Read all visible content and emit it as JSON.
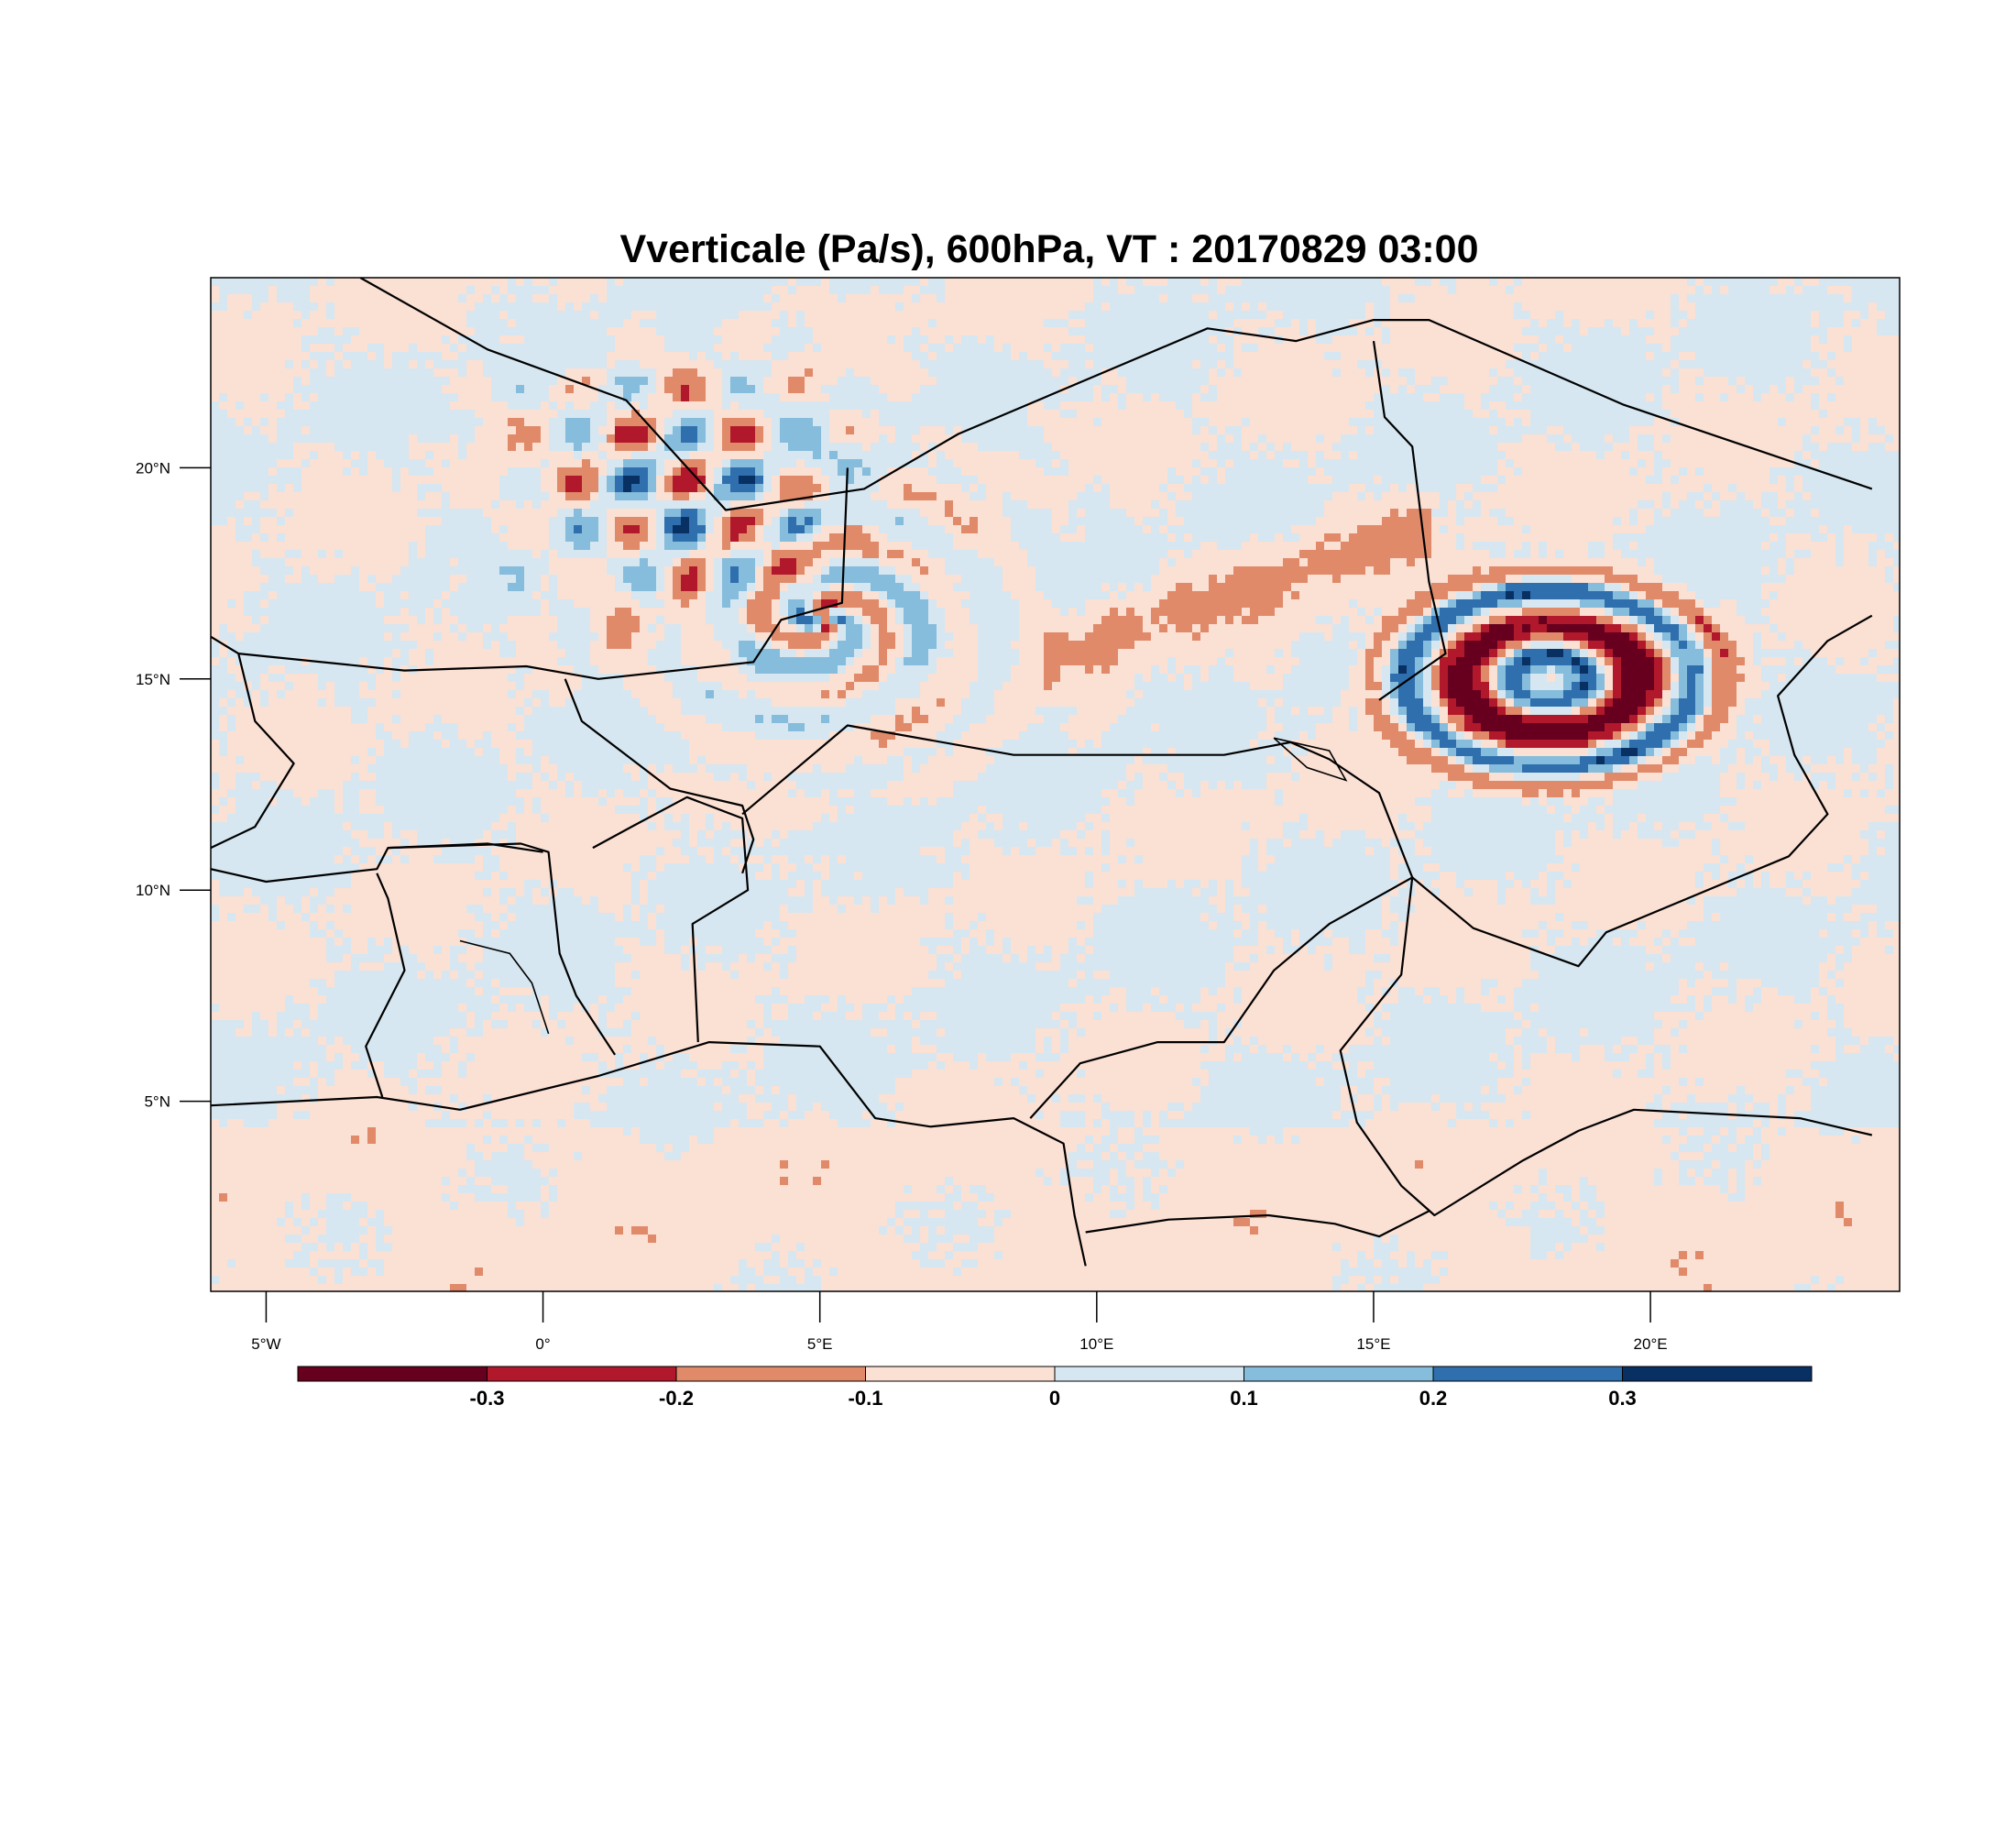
{
  "title": "Vverticale (Pa/s), 600hPa, VT : 20170829  03:00",
  "map": {
    "lon_range": [
      -6,
      24.5
    ],
    "lat_range": [
      0.5,
      24.5
    ],
    "lon_ticks": [
      {
        "value": -5,
        "label": "5°W"
      },
      {
        "value": 0,
        "label": "0°"
      },
      {
        "value": 5,
        "label": "5°E"
      },
      {
        "value": 10,
        "label": "10°E"
      },
      {
        "value": 15,
        "label": "15°E"
      },
      {
        "value": 20,
        "label": "20°E"
      }
    ],
    "lat_ticks": [
      {
        "value": 20,
        "label": "20°N"
      },
      {
        "value": 15,
        "label": "15°N"
      },
      {
        "value": 10,
        "label": "10°N"
      },
      {
        "value": 5,
        "label": "5°N"
      }
    ]
  },
  "colorbar": {
    "colors": [
      "#67001f",
      "#b2182b",
      "#e08a6a",
      "#fbe0d4",
      "#d6e7f1",
      "#86bcdc",
      "#2f6fad",
      "#083063"
    ],
    "labels": [
      "-0.3",
      "-0.2",
      "-0.1",
      "0",
      "0.1",
      "0.2",
      "0.3"
    ]
  },
  "field_features": [
    {
      "type": "anticyclone-ring",
      "lon": 18.1,
      "lat": 15.1,
      "note_color": "#67001f"
    },
    {
      "type": "swirl",
      "lon": 5.0,
      "lat": 16.5
    },
    {
      "type": "turbulent-patch",
      "lon": 2.5,
      "lat": 19.8
    }
  ]
}
